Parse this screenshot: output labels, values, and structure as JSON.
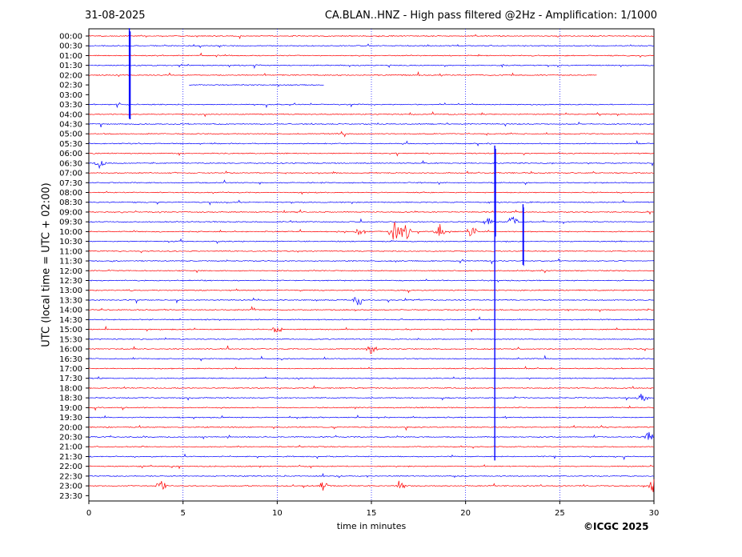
{
  "header": {
    "date": "31-08-2025",
    "title": "CA.BLAN..HNZ - High pass filtered @2Hz - Amplification: 1/1000"
  },
  "footer": {
    "credit": "©ICGC 2025"
  },
  "chart_data": {
    "type": "line",
    "subtype": "helicorder",
    "xlabel": "time in minutes",
    "ylabel": "UTC (local time = UTC + 02:00)",
    "xlim": [
      0,
      30
    ],
    "x_ticks": [
      0,
      5,
      10,
      15,
      20,
      25,
      30
    ],
    "grid": "vertical dotted at 5-minute ticks",
    "colors": {
      "even_trace": "#ff0000",
      "odd_trace": "#0000ff",
      "grid": "#0000ff"
    },
    "rows": [
      "00:00",
      "00:30",
      "01:00",
      "01:30",
      "02:00",
      "02:30",
      "03:00",
      "03:30",
      "04:00",
      "04:30",
      "05:00",
      "05:30",
      "06:00",
      "06:30",
      "07:00",
      "07:30",
      "08:00",
      "08:30",
      "09:00",
      "09:30",
      "10:00",
      "10:30",
      "11:00",
      "11:30",
      "12:00",
      "12:30",
      "13:00",
      "13:30",
      "14:00",
      "14:30",
      "15:00",
      "15:30",
      "16:00",
      "16:30",
      "17:00",
      "17:30",
      "18:00",
      "18:30",
      "19:00",
      "19:30",
      "20:00",
      "20:30",
      "21:00",
      "21:30",
      "22:00",
      "22:30",
      "23:00",
      "23:30"
    ],
    "data_gaps": [
      {
        "row": "02:00",
        "from_min": 27.0,
        "to_min": 30
      },
      {
        "row": "02:30",
        "from_min": 0,
        "to_min": 5.3
      },
      {
        "row": "02:30",
        "from_min": 12.5,
        "to_min": 30
      },
      {
        "row": "03:00",
        "from_min": 0,
        "to_min": 30
      },
      {
        "row": "23:30",
        "from_min": 0,
        "to_min": 30
      }
    ],
    "major_events": [
      {
        "row": "00:00",
        "minute": 2.15,
        "rows_spanned": 9,
        "amplitude": 3.0
      },
      {
        "row": "06:00",
        "minute": 21.55,
        "rows_spanned": 32,
        "amplitude": 2.5
      },
      {
        "row": "09:00",
        "minute": 23.05,
        "rows_spanned": 6,
        "amplitude": 1.4
      }
    ],
    "bursts": [
      {
        "row": "06:30",
        "minute": 0.6,
        "amplitude": 0.6
      },
      {
        "row": "09:30",
        "minute": 21.2,
        "amplitude": 0.5
      },
      {
        "row": "09:30",
        "minute": 22.5,
        "amplitude": 0.9
      },
      {
        "row": "10:00",
        "minute": 14.4,
        "amplitude": 0.7
      },
      {
        "row": "10:00",
        "minute": 16.2,
        "amplitude": 1.6
      },
      {
        "row": "10:00",
        "minute": 16.8,
        "amplitude": 1.4
      },
      {
        "row": "10:00",
        "minute": 18.6,
        "amplitude": 0.9
      },
      {
        "row": "10:00",
        "minute": 20.3,
        "amplitude": 0.8
      },
      {
        "row": "13:30",
        "minute": 14.3,
        "amplitude": 0.9
      },
      {
        "row": "15:00",
        "minute": 10.0,
        "amplitude": 0.6
      },
      {
        "row": "16:00",
        "minute": 15.0,
        "amplitude": 0.7
      },
      {
        "row": "18:30",
        "minute": 29.4,
        "amplitude": 0.7
      },
      {
        "row": "20:30",
        "minute": 29.7,
        "amplitude": 0.6
      },
      {
        "row": "23:00",
        "minute": 3.85,
        "amplitude": 0.8
      },
      {
        "row": "23:00",
        "minute": 12.5,
        "amplitude": 0.8
      },
      {
        "row": "23:00",
        "minute": 16.5,
        "amplitude": 0.7
      },
      {
        "row": "23:00",
        "minute": 30.0,
        "amplitude": 0.9
      }
    ]
  }
}
